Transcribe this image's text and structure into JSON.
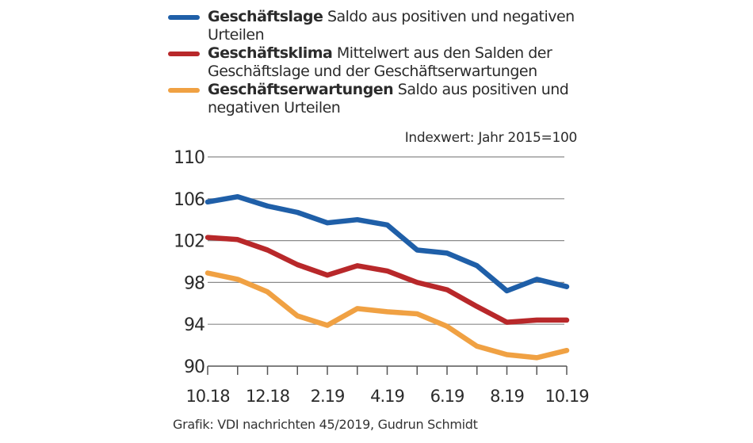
{
  "chart_data": {
    "type": "line",
    "title": "",
    "unit_note": "Indexwert: Jahr 2015=100",
    "source": "Grafik: VDI nachrichten 45/2019, Gudrun Schmidt",
    "xlabel": "",
    "ylabel": "",
    "ylim": [
      90,
      110
    ],
    "yticks": [
      110,
      106,
      102,
      98,
      94,
      90
    ],
    "x": [
      "10.18",
      "11.18",
      "12.18",
      "1.19",
      "2.19",
      "3.19",
      "4.19",
      "5.19",
      "6.19",
      "7.19",
      "8.19",
      "9.19",
      "10.19"
    ],
    "xtick_labels": [
      {
        "index": 0,
        "label": "10.18"
      },
      {
        "index": 2,
        "label": "12.18"
      },
      {
        "index": 4,
        "label": "2.19"
      },
      {
        "index": 6,
        "label": "4.19"
      },
      {
        "index": 8,
        "label": "6.19"
      },
      {
        "index": 10,
        "label": "8.19"
      },
      {
        "index": 12,
        "label": "10.19"
      }
    ],
    "grid": true,
    "legend_position": "top",
    "series": [
      {
        "name": "Geschäftslage",
        "description": "Saldo aus positiven und negativen Urteilen",
        "color": "#1f5fa8",
        "values": [
          105.7,
          106.2,
          105.3,
          104.7,
          103.7,
          104.0,
          103.5,
          101.1,
          100.8,
          99.6,
          97.2,
          98.3,
          97.6
        ]
      },
      {
        "name": "Geschäftsklima",
        "description": "Mittelwert aus den Salden der Geschäftslage und der Geschäftserwartungen",
        "color": "#b8282a",
        "values": [
          102.3,
          102.1,
          101.1,
          99.7,
          98.7,
          99.6,
          99.1,
          98.0,
          97.3,
          95.7,
          94.2,
          94.4,
          94.4
        ]
      },
      {
        "name": "Geschäftserwartungen",
        "description": "Saldo aus positiven und negativen Urteilen",
        "color": "#f0a143",
        "values": [
          98.9,
          98.3,
          97.1,
          94.8,
          93.9,
          95.5,
          95.2,
          95.0,
          93.8,
          91.9,
          91.1,
          90.8,
          91.5
        ]
      }
    ]
  }
}
